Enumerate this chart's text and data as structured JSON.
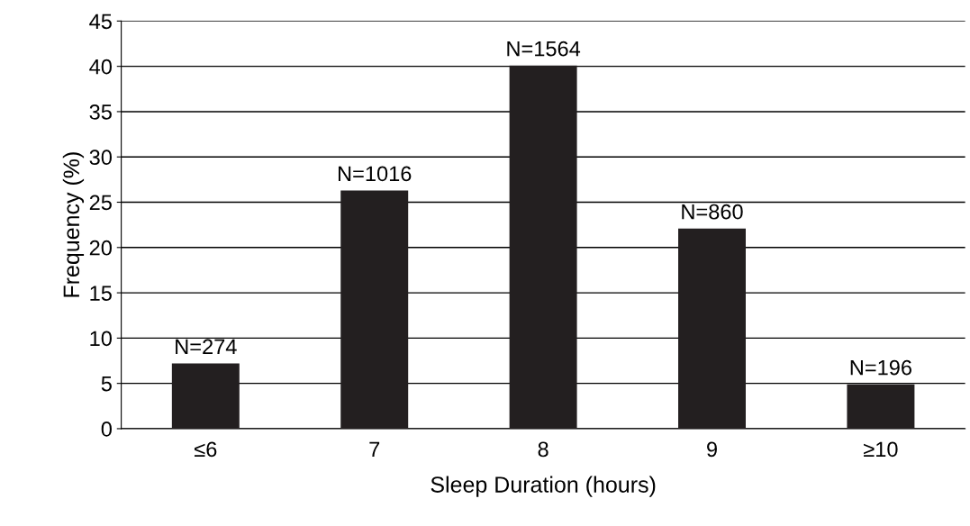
{
  "chart_data": {
    "type": "bar",
    "xlabel": "Sleep Duration (hours)",
    "ylabel": "Frequency (%)",
    "categories": [
      "≤6",
      "7",
      "8",
      "9",
      "≥10"
    ],
    "values": [
      7.2,
      26.3,
      40.1,
      22.1,
      4.9
    ],
    "annotations": [
      {
        "text": "N=274",
        "x": "≤6",
        "y": 7.2
      },
      {
        "text": "N=1016",
        "x": "7",
        "y": 26.3
      },
      {
        "text": "N=1564",
        "x": "8",
        "y": 40.1
      },
      {
        "text": "N=860",
        "x": "9",
        "y": 22.1
      },
      {
        "text": "N=196",
        "x": "≥10",
        "y": 4.9
      }
    ],
    "color": "#231f20",
    "ylim": [
      0,
      45
    ],
    "yticks": [
      0,
      5,
      10,
      15,
      20,
      25,
      30,
      35,
      40,
      45
    ],
    "grid": "y"
  }
}
